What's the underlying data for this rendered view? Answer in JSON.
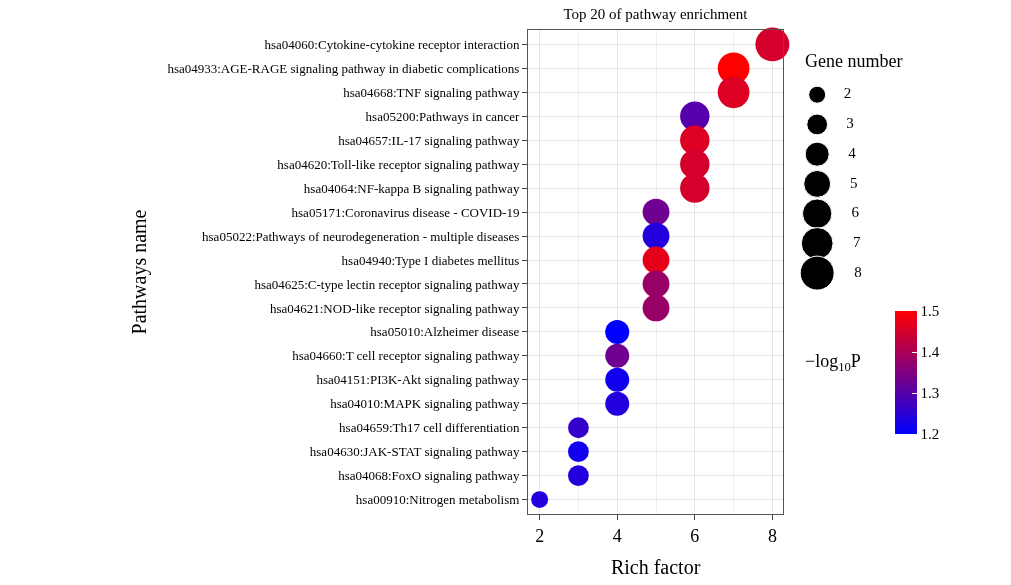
{
  "chart_data": {
    "type": "bubble",
    "title": "Top 20 of pathway enrichment",
    "xlabel": "Rich factor",
    "ylabel": "Pathways name",
    "legend_title": "Gene number",
    "clabel": "−log$_{10}$P",
    "orientation": "horizontal",
    "categories": [
      "hsa04060:Cytokine-cytokine receptor interaction",
      "hsa04933:AGE-RAGE signaling pathway in diabetic complications",
      "hsa04668:TNF signaling pathway",
      "hsa05200:Pathways in cancer",
      "hsa04657:IL-17 signaling pathway",
      "hsa04620:Toll-like receptor signaling pathway",
      "hsa04064:NF-kappa B signaling pathway",
      "hsa05171:Coronavirus disease - COVID-19",
      "hsa05022:Pathways of neurodegeneration - multiple diseases",
      "hsa04940:Type I diabetes mellitus",
      "hsa04625:C-type lectin receptor signaling pathway",
      "hsa04621:NOD-like receptor signaling pathway",
      "hsa05010:Alzheimer disease",
      "hsa04660:T cell receptor signaling pathway",
      "hsa04151:PI3K-Akt signaling pathway",
      "hsa04010:MAPK signaling pathway",
      "hsa04659:Th17 cell differentiation",
      "hsa04630:JAK-STAT signaling pathway",
      "hsa04068:FoxO signaling pathway",
      "hsa00910:Nitrogen metabolism"
    ],
    "values": [
      8,
      7,
      7,
      6,
      6,
      6,
      6,
      5,
      5,
      5,
      5,
      5,
      4,
      4,
      4,
      4,
      3,
      3,
      3,
      2
    ],
    "sizes": [
      8,
      7,
      7,
      6,
      6,
      6,
      6,
      5,
      5,
      5,
      5,
      5,
      4,
      4,
      4,
      4,
      3,
      3,
      3,
      2
    ],
    "cvalues": [
      1.45,
      1.5,
      1.46,
      1.3,
      1.46,
      1.45,
      1.45,
      1.33,
      1.24,
      1.47,
      1.38,
      1.38,
      1.2,
      1.33,
      1.22,
      1.24,
      1.26,
      1.22,
      1.24,
      1.24
    ],
    "size_legend": [
      2,
      3,
      4,
      5,
      6,
      7,
      8
    ],
    "clim": [
      1.2,
      1.5
    ],
    "cticks": [
      1.2,
      1.3,
      1.4,
      1.5
    ],
    "xlim": [
      1.7,
      8.28
    ],
    "xticks": [
      2,
      4,
      6,
      8
    ],
    "grid": true
  }
}
